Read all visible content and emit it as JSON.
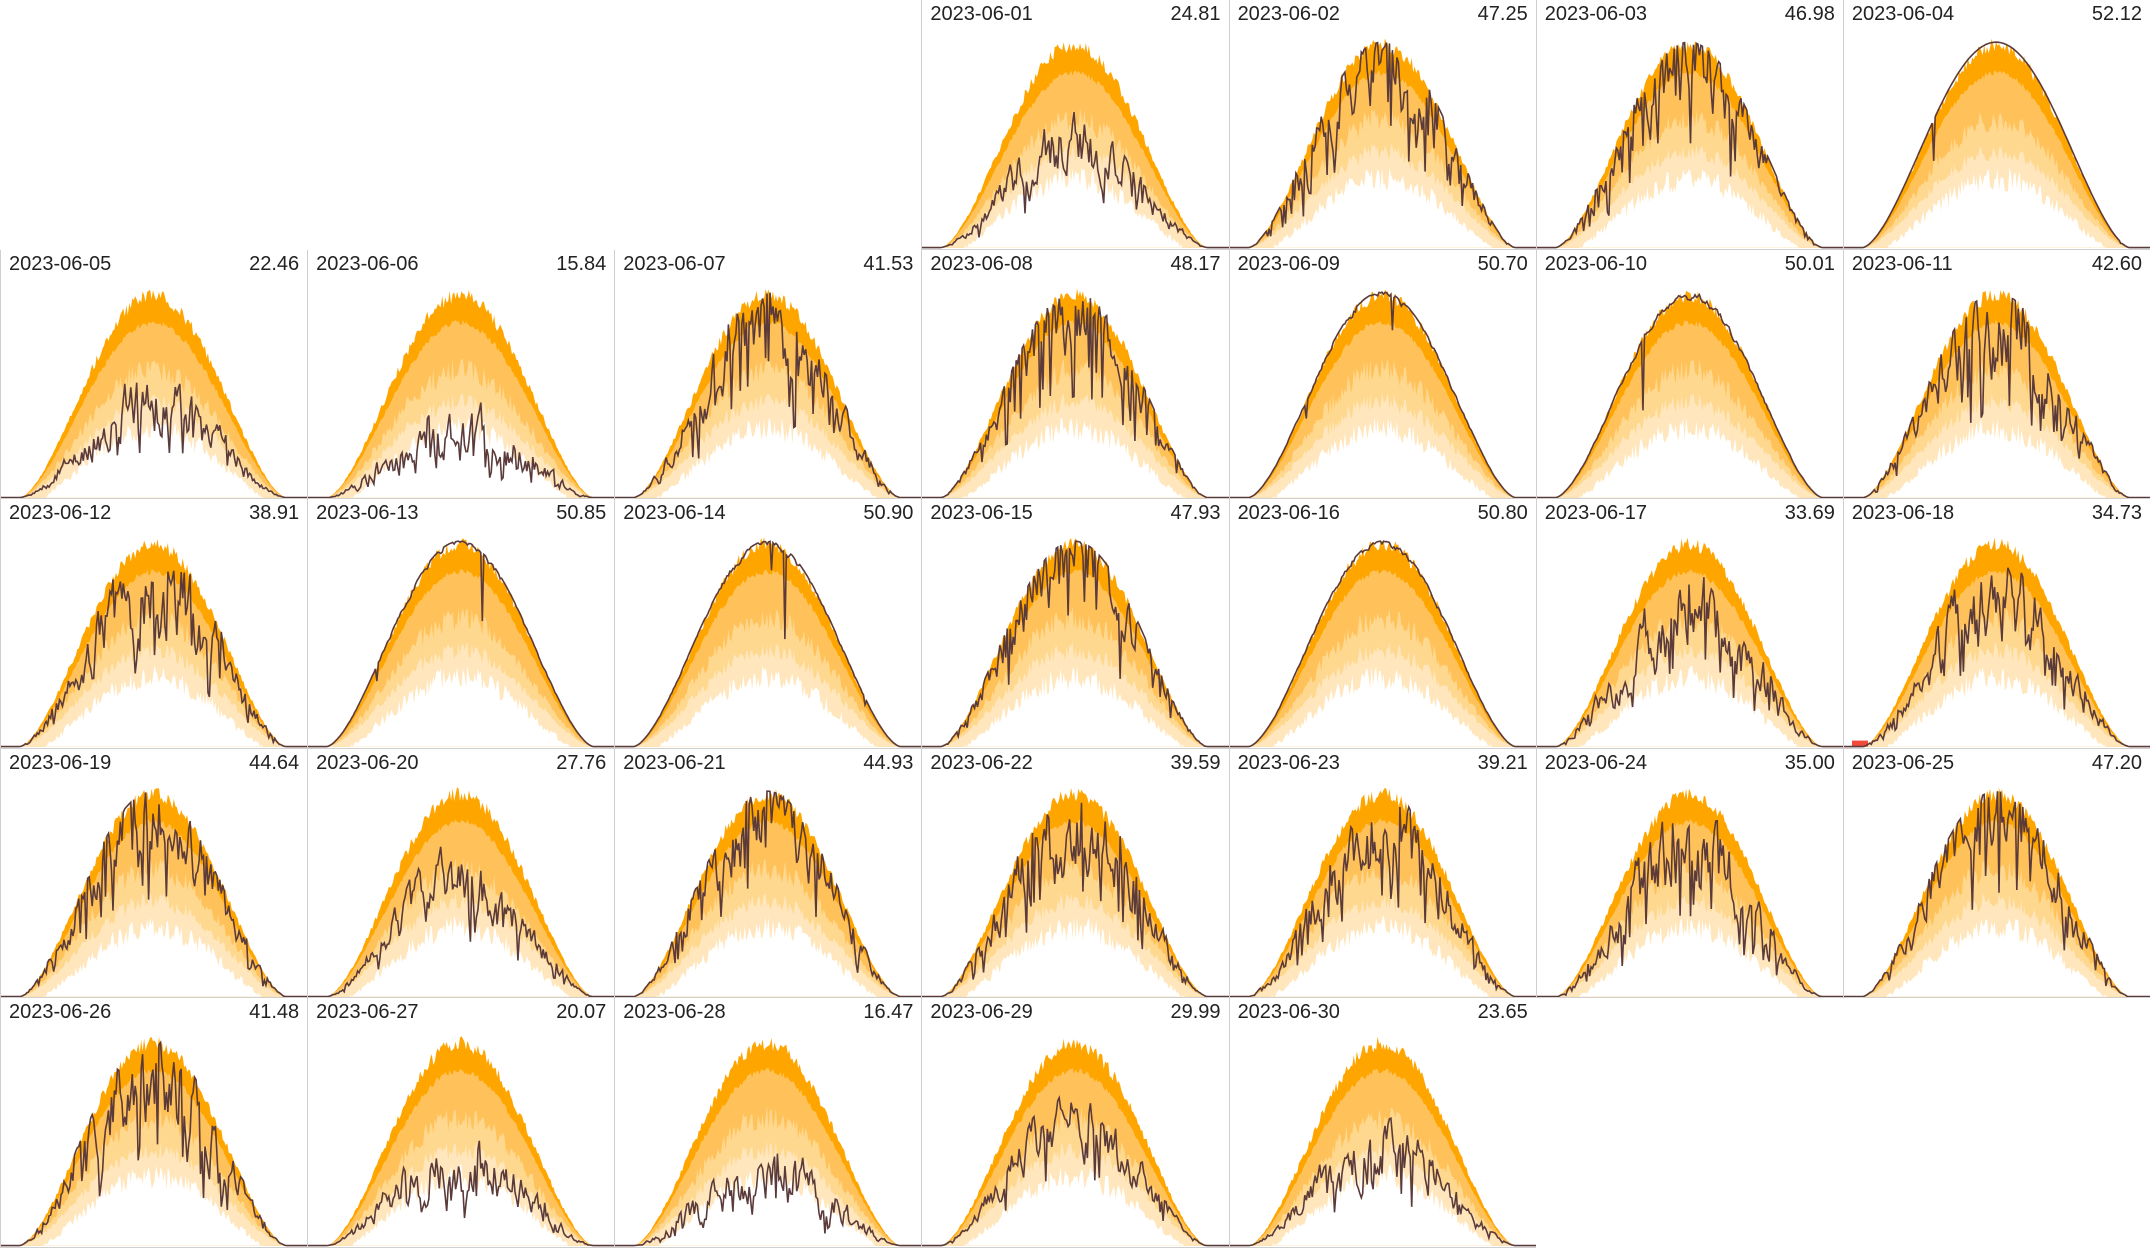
{
  "chart_data": {
    "type": "area",
    "layout": "calendar",
    "week_start": "Monday",
    "first_day_column": 4,
    "colors": {
      "envelope_max": "#FFA500",
      "envelope_high": "#FFC25A",
      "envelope_mid": "#FFD88F",
      "envelope_low": "#FFE6BC",
      "actual_line": "#5B3A3A",
      "grid_border": "#CFCFCF",
      "highlight": "#F04A3A"
    },
    "days": [
      {
        "date": "2023-06-01",
        "total": "24.81"
      },
      {
        "date": "2023-06-02",
        "total": "47.25"
      },
      {
        "date": "2023-06-03",
        "total": "46.98"
      },
      {
        "date": "2023-06-04",
        "total": "52.12"
      },
      {
        "date": "2023-06-05",
        "total": "22.46"
      },
      {
        "date": "2023-06-06",
        "total": "15.84"
      },
      {
        "date": "2023-06-07",
        "total": "41.53"
      },
      {
        "date": "2023-06-08",
        "total": "48.17"
      },
      {
        "date": "2023-06-09",
        "total": "50.70"
      },
      {
        "date": "2023-06-10",
        "total": "50.01"
      },
      {
        "date": "2023-06-11",
        "total": "42.60"
      },
      {
        "date": "2023-06-12",
        "total": "38.91"
      },
      {
        "date": "2023-06-13",
        "total": "50.85"
      },
      {
        "date": "2023-06-14",
        "total": "50.90"
      },
      {
        "date": "2023-06-15",
        "total": "47.93"
      },
      {
        "date": "2023-06-16",
        "total": "50.80"
      },
      {
        "date": "2023-06-17",
        "total": "33.69"
      },
      {
        "date": "2023-06-18",
        "total": "34.73"
      },
      {
        "date": "2023-06-19",
        "total": "44.64"
      },
      {
        "date": "2023-06-20",
        "total": "27.76"
      },
      {
        "date": "2023-06-21",
        "total": "44.93"
      },
      {
        "date": "2023-06-22",
        "total": "39.59"
      },
      {
        "date": "2023-06-23",
        "total": "39.21"
      },
      {
        "date": "2023-06-24",
        "total": "35.00"
      },
      {
        "date": "2023-06-25",
        "total": "47.20"
      },
      {
        "date": "2023-06-26",
        "total": "41.48"
      },
      {
        "date": "2023-06-27",
        "total": "20.07"
      },
      {
        "date": "2023-06-28",
        "total": "16.47"
      },
      {
        "date": "2023-06-29",
        "total": "29.99"
      },
      {
        "date": "2023-06-30",
        "total": "23.65"
      }
    ]
  }
}
